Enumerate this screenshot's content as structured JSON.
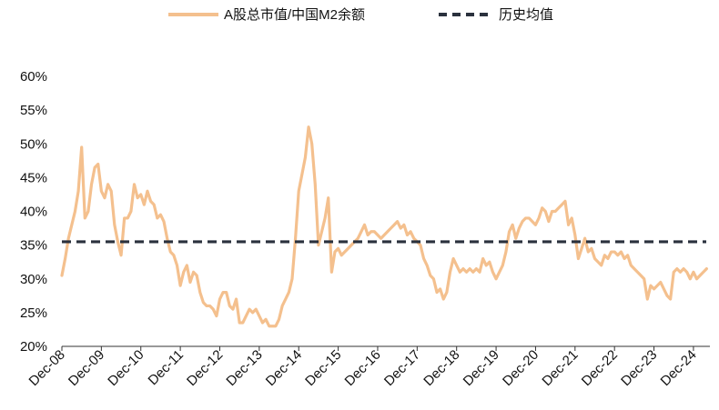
{
  "chart_data": {
    "type": "line",
    "title": "",
    "xlabel": "",
    "ylabel": "",
    "ylim": [
      0.2,
      0.6
    ],
    "yticks": [
      0.2,
      0.25,
      0.3,
      0.35,
      0.4,
      0.45,
      0.5,
      0.55,
      0.6
    ],
    "ytick_labels": [
      "20%",
      "25%",
      "30%",
      "35%",
      "40%",
      "45%",
      "50%",
      "55%",
      "60%"
    ],
    "xlim": [
      "2008-12",
      "2025-05"
    ],
    "xtick_labels": [
      "Dec-08",
      "Dec-09",
      "Dec-10",
      "Dec-11",
      "Dec-12",
      "Dec-13",
      "Dec-14",
      "Dec-15",
      "Dec-16",
      "Dec-17",
      "Dec-18",
      "Dec-19",
      "Dec-20",
      "Dec-21",
      "Dec-22",
      "Dec-23",
      "Dec-24"
    ],
    "grid": false,
    "legend": "top",
    "series": [
      {
        "name": "A股总市值/中国M2余额",
        "color": "#F4C08E",
        "points": [
          [
            "2008-12",
            0.305
          ],
          [
            "2009-01",
            0.33
          ],
          [
            "2009-02",
            0.36
          ],
          [
            "2009-03",
            0.38
          ],
          [
            "2009-04",
            0.4
          ],
          [
            "2009-05",
            0.43
          ],
          [
            "2009-06",
            0.495
          ],
          [
            "2009-07",
            0.39
          ],
          [
            "2009-08",
            0.4
          ],
          [
            "2009-09",
            0.44
          ],
          [
            "2009-10",
            0.465
          ],
          [
            "2009-11",
            0.47
          ],
          [
            "2009-12",
            0.43
          ],
          [
            "2010-01",
            0.42
          ],
          [
            "2010-02",
            0.44
          ],
          [
            "2010-03",
            0.43
          ],
          [
            "2010-04",
            0.38
          ],
          [
            "2010-05",
            0.355
          ],
          [
            "2010-06",
            0.335
          ],
          [
            "2010-07",
            0.39
          ],
          [
            "2010-08",
            0.39
          ],
          [
            "2010-09",
            0.4
          ],
          [
            "2010-10",
            0.44
          ],
          [
            "2010-11",
            0.42
          ],
          [
            "2010-12",
            0.425
          ],
          [
            "2011-01",
            0.41
          ],
          [
            "2011-02",
            0.43
          ],
          [
            "2011-03",
            0.415
          ],
          [
            "2011-04",
            0.41
          ],
          [
            "2011-05",
            0.39
          ],
          [
            "2011-06",
            0.395
          ],
          [
            "2011-07",
            0.385
          ],
          [
            "2011-08",
            0.36
          ],
          [
            "2011-09",
            0.34
          ],
          [
            "2011-10",
            0.335
          ],
          [
            "2011-11",
            0.32
          ],
          [
            "2011-12",
            0.29
          ],
          [
            "2012-01",
            0.31
          ],
          [
            "2012-02",
            0.32
          ],
          [
            "2012-03",
            0.295
          ],
          [
            "2012-04",
            0.31
          ],
          [
            "2012-05",
            0.305
          ],
          [
            "2012-06",
            0.28
          ],
          [
            "2012-07",
            0.265
          ],
          [
            "2012-08",
            0.26
          ],
          [
            "2012-09",
            0.26
          ],
          [
            "2012-10",
            0.255
          ],
          [
            "2012-11",
            0.245
          ],
          [
            "2012-12",
            0.27
          ],
          [
            "2013-01",
            0.28
          ],
          [
            "2013-02",
            0.28
          ],
          [
            "2013-03",
            0.26
          ],
          [
            "2013-04",
            0.255
          ],
          [
            "2013-05",
            0.27
          ],
          [
            "2013-06",
            0.235
          ],
          [
            "2013-07",
            0.235
          ],
          [
            "2013-08",
            0.245
          ],
          [
            "2013-09",
            0.255
          ],
          [
            "2013-10",
            0.25
          ],
          [
            "2013-11",
            0.255
          ],
          [
            "2013-12",
            0.245
          ],
          [
            "2014-01",
            0.235
          ],
          [
            "2014-02",
            0.24
          ],
          [
            "2014-03",
            0.23
          ],
          [
            "2014-04",
            0.23
          ],
          [
            "2014-05",
            0.23
          ],
          [
            "2014-06",
            0.24
          ],
          [
            "2014-07",
            0.26
          ],
          [
            "2014-08",
            0.27
          ],
          [
            "2014-09",
            0.28
          ],
          [
            "2014-10",
            0.3
          ],
          [
            "2014-11",
            0.36
          ],
          [
            "2014-12",
            0.43
          ],
          [
            "2015-01",
            0.455
          ],
          [
            "2015-02",
            0.48
          ],
          [
            "2015-03",
            0.525
          ],
          [
            "2015-04",
            0.5
          ],
          [
            "2015-05",
            0.44
          ],
          [
            "2015-06",
            0.35
          ],
          [
            "2015-07",
            0.37
          ],
          [
            "2015-08",
            0.39
          ],
          [
            "2015-09",
            0.42
          ],
          [
            "2015-10",
            0.31
          ],
          [
            "2015-11",
            0.34
          ],
          [
            "2015-12",
            0.345
          ],
          [
            "2016-01",
            0.335
          ],
          [
            "2016-02",
            0.34
          ],
          [
            "2016-03",
            0.345
          ],
          [
            "2016-04",
            0.35
          ],
          [
            "2016-05",
            0.355
          ],
          [
            "2016-06",
            0.36
          ],
          [
            "2016-07",
            0.37
          ],
          [
            "2016-08",
            0.38
          ],
          [
            "2016-09",
            0.365
          ],
          [
            "2016-10",
            0.37
          ],
          [
            "2016-11",
            0.37
          ],
          [
            "2016-12",
            0.365
          ],
          [
            "2017-01",
            0.36
          ],
          [
            "2017-02",
            0.365
          ],
          [
            "2017-03",
            0.37
          ],
          [
            "2017-04",
            0.375
          ],
          [
            "2017-05",
            0.38
          ],
          [
            "2017-06",
            0.385
          ],
          [
            "2017-07",
            0.375
          ],
          [
            "2017-08",
            0.38
          ],
          [
            "2017-09",
            0.365
          ],
          [
            "2017-10",
            0.37
          ],
          [
            "2017-11",
            0.36
          ],
          [
            "2017-12",
            0.355
          ],
          [
            "2018-01",
            0.35
          ],
          [
            "2018-02",
            0.33
          ],
          [
            "2018-03",
            0.32
          ],
          [
            "2018-04",
            0.305
          ],
          [
            "2018-05",
            0.3
          ],
          [
            "2018-06",
            0.28
          ],
          [
            "2018-07",
            0.285
          ],
          [
            "2018-08",
            0.27
          ],
          [
            "2018-09",
            0.28
          ],
          [
            "2018-10",
            0.31
          ],
          [
            "2018-11",
            0.33
          ],
          [
            "2018-12",
            0.32
          ],
          [
            "2019-01",
            0.31
          ],
          [
            "2019-02",
            0.315
          ],
          [
            "2019-03",
            0.31
          ],
          [
            "2019-04",
            0.315
          ],
          [
            "2019-05",
            0.31
          ],
          [
            "2019-06",
            0.315
          ],
          [
            "2019-07",
            0.31
          ],
          [
            "2019-08",
            0.33
          ],
          [
            "2019-09",
            0.32
          ],
          [
            "2019-10",
            0.325
          ],
          [
            "2019-11",
            0.31
          ],
          [
            "2019-12",
            0.3
          ],
          [
            "2020-01",
            0.31
          ],
          [
            "2020-02",
            0.32
          ],
          [
            "2020-03",
            0.34
          ],
          [
            "2020-04",
            0.37
          ],
          [
            "2020-05",
            0.38
          ],
          [
            "2020-06",
            0.36
          ],
          [
            "2020-07",
            0.375
          ],
          [
            "2020-08",
            0.385
          ],
          [
            "2020-09",
            0.39
          ],
          [
            "2020-10",
            0.39
          ],
          [
            "2020-11",
            0.385
          ],
          [
            "2020-12",
            0.38
          ],
          [
            "2021-01",
            0.39
          ],
          [
            "2021-02",
            0.405
          ],
          [
            "2021-03",
            0.4
          ],
          [
            "2021-04",
            0.385
          ],
          [
            "2021-05",
            0.4
          ],
          [
            "2021-06",
            0.4
          ],
          [
            "2021-07",
            0.405
          ],
          [
            "2021-08",
            0.41
          ],
          [
            "2021-09",
            0.415
          ],
          [
            "2021-10",
            0.38
          ],
          [
            "2021-11",
            0.39
          ],
          [
            "2021-12",
            0.365
          ],
          [
            "2022-01",
            0.33
          ],
          [
            "2022-02",
            0.345
          ],
          [
            "2022-03",
            0.36
          ],
          [
            "2022-04",
            0.34
          ],
          [
            "2022-05",
            0.345
          ],
          [
            "2022-06",
            0.33
          ],
          [
            "2022-07",
            0.325
          ],
          [
            "2022-08",
            0.32
          ],
          [
            "2022-09",
            0.335
          ],
          [
            "2022-10",
            0.33
          ],
          [
            "2022-11",
            0.34
          ],
          [
            "2022-12",
            0.34
          ],
          [
            "2023-01",
            0.335
          ],
          [
            "2023-02",
            0.34
          ],
          [
            "2023-03",
            0.33
          ],
          [
            "2023-04",
            0.335
          ],
          [
            "2023-05",
            0.32
          ],
          [
            "2023-06",
            0.315
          ],
          [
            "2023-07",
            0.31
          ],
          [
            "2023-08",
            0.305
          ],
          [
            "2023-09",
            0.3
          ],
          [
            "2023-10",
            0.27
          ],
          [
            "2023-11",
            0.29
          ],
          [
            "2023-12",
            0.285
          ],
          [
            "2024-01",
            0.29
          ],
          [
            "2024-02",
            0.295
          ],
          [
            "2024-03",
            0.285
          ],
          [
            "2024-04",
            0.275
          ],
          [
            "2024-05",
            0.27
          ],
          [
            "2024-06",
            0.31
          ],
          [
            "2024-07",
            0.315
          ],
          [
            "2024-08",
            0.31
          ],
          [
            "2024-09",
            0.315
          ],
          [
            "2024-10",
            0.31
          ],
          [
            "2024-11",
            0.3
          ],
          [
            "2024-12",
            0.31
          ],
          [
            "2025-01",
            0.3
          ],
          [
            "2025-02",
            0.305
          ],
          [
            "2025-03",
            0.31
          ],
          [
            "2025-04",
            0.315
          ]
        ]
      },
      {
        "name": "历史均值",
        "color": "#2A313D",
        "style": "dashed",
        "value": 0.355
      }
    ]
  }
}
